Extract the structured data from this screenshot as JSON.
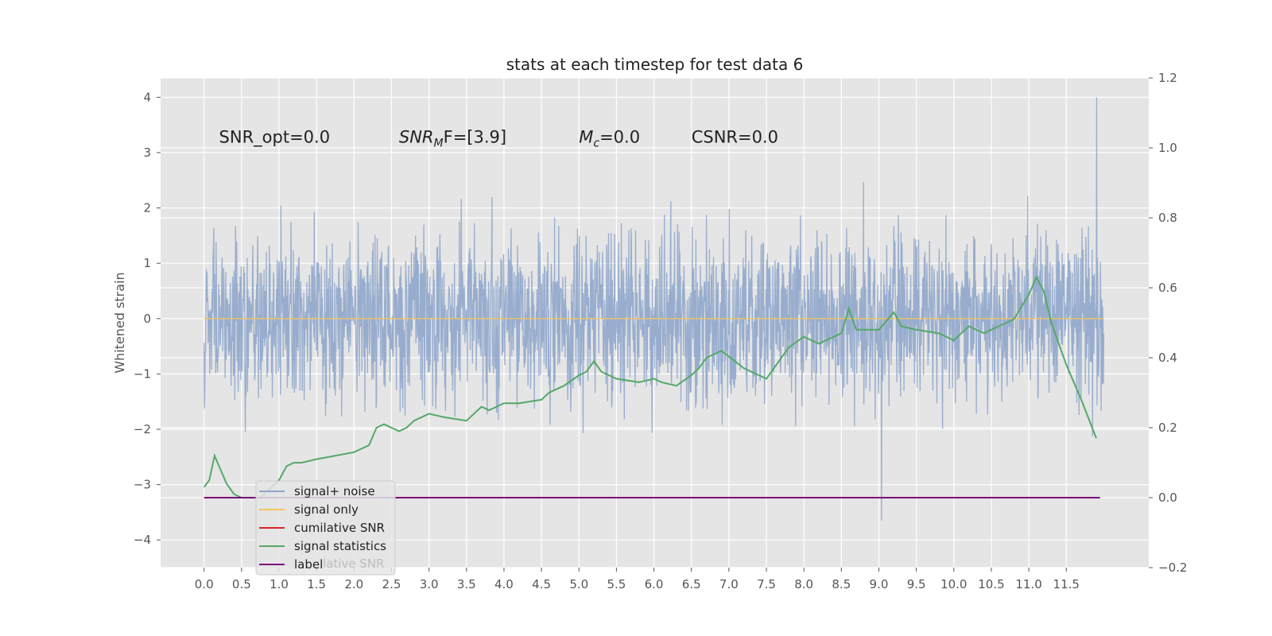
{
  "chart_data": {
    "type": "line",
    "title": "stats at each timestep for test data 6",
    "ylabel": "Whitened strain",
    "xlabel": "",
    "xlim": [
      -0.58,
      12.6
    ],
    "ylim": [
      -4.5,
      4.35
    ],
    "y2lim": [
      -0.2,
      1.2
    ],
    "x_ticks": [
      "0.0",
      "0.5",
      "1.0",
      "1.5",
      "2.0",
      "2.5",
      "3.0",
      "3.5",
      "4.0",
      "4.5",
      "5.0",
      "5.5",
      "6.0",
      "6.5",
      "7.0",
      "7.5",
      "8.0",
      "8.5",
      "9.0",
      "9.5",
      "10.0",
      "10.5",
      "11.0",
      "11.5"
    ],
    "y_ticks": [
      "4",
      "3",
      "2",
      "1",
      "0",
      "−1",
      "−2",
      "−3",
      "−4"
    ],
    "y2_ticks": [
      "1.2",
      "1.0",
      "0.8",
      "0.6",
      "0.4",
      "0.2",
      "0.0",
      "−0.2"
    ],
    "annotations": [
      {
        "text": "SNR_opt=0.0",
        "x": 0.2,
        "y": 3.18
      },
      {
        "prefix": "SNR",
        "sub": "M",
        "suffix": "F=[3.9]",
        "x": 2.6,
        "y": 3.18
      },
      {
        "prefix": "M",
        "sub": "c",
        "suffix": "=0.0",
        "x": 5.0,
        "y": 3.18
      },
      {
        "text": "CSNR=0.0",
        "x": 6.5,
        "y": 3.18
      }
    ],
    "legend_location": "lower left",
    "legend": [
      {
        "label": "signal+ noise",
        "color": "#8fa6cb"
      },
      {
        "label": "signal only",
        "color": "#f4c55a"
      },
      {
        "label": "cumilative SNR",
        "color": "#d62728"
      },
      {
        "label": "signal statistics",
        "color": "#55a868"
      },
      {
        "label": "label",
        "color": "#7b0a7b"
      }
    ],
    "legend_ghost_text": "lative SNR",
    "series": [
      {
        "name": "signal+ noise",
        "axis": "left",
        "x_range": [
          0.0,
          12.0
        ],
        "typical_range": [
          -2.0,
          2.0
        ],
        "min": -3.65,
        "max": 4.0,
        "note": "dense noisy strain time series"
      },
      {
        "name": "signal only",
        "axis": "left",
        "x": [
          0.0,
          12.0
        ],
        "y": [
          0.0,
          0.0
        ]
      },
      {
        "name": "signal statistics",
        "axis": "right",
        "x": [
          0.0,
          0.07,
          0.14,
          0.2,
          0.3,
          0.4,
          0.5,
          0.6,
          0.75,
          1.0,
          1.1,
          1.2,
          1.3,
          1.5,
          2.0,
          2.2,
          2.3,
          2.4,
          2.5,
          2.6,
          2.7,
          2.8,
          2.9,
          3.0,
          3.2,
          3.5,
          3.7,
          3.8,
          3.9,
          4.0,
          4.2,
          4.5,
          4.6,
          4.8,
          5.0,
          5.1,
          5.2,
          5.3,
          5.5,
          5.8,
          6.0,
          6.1,
          6.3,
          6.5,
          6.6,
          6.7,
          6.8,
          6.9,
          7.2,
          7.5,
          7.6,
          7.7,
          7.8,
          8.0,
          8.2,
          8.5,
          8.6,
          8.7,
          9.0,
          9.2,
          9.3,
          9.5,
          9.8,
          10.0,
          10.2,
          10.4,
          10.6,
          10.8,
          11.0,
          11.1,
          11.2,
          11.3,
          11.5,
          11.7,
          11.9
        ],
        "y": [
          0.03,
          0.05,
          0.12,
          0.09,
          0.04,
          0.01,
          0.0,
          0.0,
          0.0,
          0.05,
          0.09,
          0.1,
          0.1,
          0.11,
          0.13,
          0.15,
          0.2,
          0.21,
          0.2,
          0.19,
          0.2,
          0.22,
          0.23,
          0.24,
          0.23,
          0.22,
          0.26,
          0.25,
          0.26,
          0.27,
          0.27,
          0.28,
          0.3,
          0.32,
          0.35,
          0.36,
          0.39,
          0.36,
          0.34,
          0.33,
          0.34,
          0.33,
          0.32,
          0.35,
          0.37,
          0.4,
          0.41,
          0.42,
          0.37,
          0.34,
          0.37,
          0.4,
          0.43,
          0.46,
          0.44,
          0.47,
          0.54,
          0.48,
          0.48,
          0.53,
          0.49,
          0.48,
          0.47,
          0.45,
          0.49,
          0.47,
          0.49,
          0.51,
          0.58,
          0.63,
          0.59,
          0.5,
          0.38,
          0.28,
          0.17
        ]
      },
      {
        "name": "label",
        "axis": "right",
        "x": [
          0.0,
          11.95
        ],
        "y": [
          0.0,
          0.0
        ]
      }
    ]
  }
}
